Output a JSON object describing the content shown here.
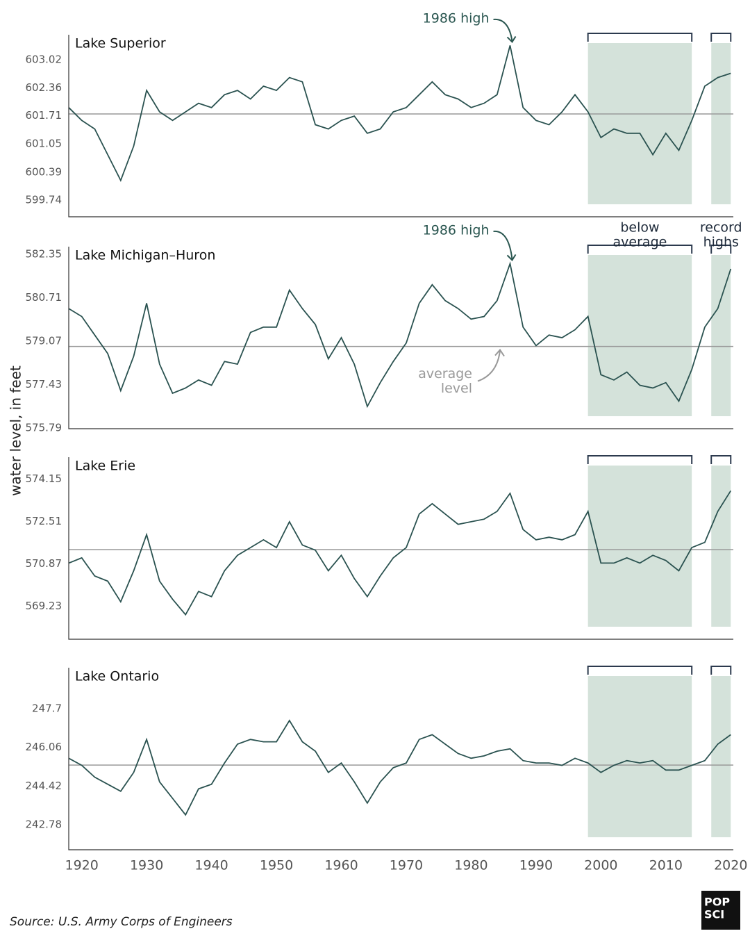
{
  "y_label": "water level, in feet",
  "source": "Source: U.S. Army Corps of Engineers",
  "logo": [
    "POP",
    "SCI"
  ],
  "chart_data": [
    {
      "type": "line",
      "title": "Lake Superior",
      "color": "#2a5250",
      "x": [
        1918,
        1920,
        1922,
        1924,
        1926,
        1928,
        1930,
        1932,
        1934,
        1936,
        1938,
        1940,
        1942,
        1944,
        1946,
        1948,
        1950,
        1952,
        1954,
        1956,
        1958,
        1960,
        1962,
        1964,
        1966,
        1968,
        1970,
        1972,
        1974,
        1976,
        1978,
        1980,
        1982,
        1984,
        1986,
        1988,
        1990,
        1992,
        1994,
        1996,
        1998,
        2000,
        2002,
        2004,
        2006,
        2008,
        2010,
        2012,
        2014,
        2016,
        2018,
        2020
      ],
      "values": [
        601.9,
        601.6,
        601.4,
        600.8,
        600.2,
        601.0,
        602.3,
        601.8,
        601.6,
        601.8,
        602.0,
        601.9,
        602.2,
        602.3,
        602.1,
        602.4,
        602.3,
        602.6,
        602.5,
        601.5,
        601.4,
        601.6,
        601.7,
        601.3,
        601.4,
        601.8,
        601.9,
        602.2,
        602.5,
        602.2,
        602.1,
        601.9,
        602.0,
        602.2,
        603.35,
        601.9,
        601.6,
        601.5,
        601.8,
        602.2,
        601.8,
        601.2,
        601.4,
        601.3,
        601.3,
        600.8,
        601.3,
        600.9,
        601.6,
        602.4,
        602.6,
        602.7
      ],
      "xlim": [
        1918,
        2020.4
      ],
      "ylim": [
        599.35,
        603.6
      ],
      "yticks": [
        599.74,
        600.39,
        601.05,
        601.71,
        602.36,
        603.02
      ],
      "average": 601.75,
      "shaded": [
        [
          1998,
          2014
        ],
        [
          2017,
          2020
        ]
      ],
      "annotation": {
        "text": "1986 high",
        "x": 1986
      }
    },
    {
      "type": "line",
      "title": "Lake Michigan–Huron",
      "color": "#2a5250",
      "x": [
        1918,
        1920,
        1922,
        1924,
        1926,
        1928,
        1930,
        1932,
        1934,
        1936,
        1938,
        1940,
        1942,
        1944,
        1946,
        1948,
        1950,
        1952,
        1954,
        1956,
        1958,
        1960,
        1962,
        1964,
        1966,
        1968,
        1970,
        1972,
        1974,
        1976,
        1978,
        1980,
        1982,
        1984,
        1986,
        1988,
        1990,
        1992,
        1994,
        1996,
        1998,
        2000,
        2002,
        2004,
        2006,
        2008,
        2010,
        2012,
        2014,
        2016,
        2018,
        2020
      ],
      "values": [
        580.3,
        580.0,
        579.3,
        578.6,
        577.2,
        578.5,
        580.5,
        578.2,
        577.1,
        577.3,
        577.6,
        577.4,
        578.3,
        578.2,
        579.4,
        579.6,
        579.6,
        581.0,
        580.3,
        579.7,
        578.4,
        579.2,
        578.2,
        576.6,
        577.5,
        578.3,
        579.0,
        580.5,
        581.2,
        580.6,
        580.3,
        579.9,
        580.0,
        580.6,
        582.0,
        579.6,
        578.9,
        579.3,
        579.2,
        579.5,
        580.0,
        577.8,
        577.6,
        577.9,
        577.4,
        577.3,
        577.5,
        576.8,
        578.0,
        579.6,
        580.3,
        581.8
      ],
      "xlim": [
        1918,
        2020.4
      ],
      "ylim": [
        575.76,
        582.64
      ],
      "yticks": [
        575.79,
        577.43,
        579.07,
        580.71,
        582.35
      ],
      "average": 578.87,
      "shaded": [
        [
          1998,
          2014
        ],
        [
          2017,
          2020
        ]
      ],
      "annotation": {
        "text": "1986 high",
        "x": 1986
      },
      "average_label": [
        "average",
        "level"
      ],
      "bracket_labels": [
        [
          "below",
          "average"
        ],
        [
          "record",
          "highs"
        ]
      ]
    },
    {
      "type": "line",
      "title": "Lake Erie",
      "color": "#2a5250",
      "x": [
        1918,
        1920,
        1922,
        1924,
        1926,
        1928,
        1930,
        1932,
        1934,
        1936,
        1938,
        1940,
        1942,
        1944,
        1946,
        1948,
        1950,
        1952,
        1954,
        1956,
        1958,
        1960,
        1962,
        1964,
        1966,
        1968,
        1970,
        1972,
        1974,
        1976,
        1978,
        1980,
        1982,
        1984,
        1986,
        1988,
        1990,
        1992,
        1994,
        1996,
        1998,
        2000,
        2002,
        2004,
        2006,
        2008,
        2010,
        2012,
        2014,
        2016,
        2018,
        2020
      ],
      "values": [
        570.9,
        571.1,
        570.4,
        570.2,
        569.4,
        570.6,
        572.0,
        570.2,
        569.5,
        568.9,
        569.8,
        569.6,
        570.6,
        571.2,
        571.5,
        571.8,
        571.5,
        572.5,
        571.6,
        571.4,
        570.6,
        571.2,
        570.3,
        569.6,
        570.4,
        571.1,
        571.5,
        572.8,
        573.2,
        572.8,
        572.4,
        572.5,
        572.6,
        572.9,
        573.6,
        572.2,
        571.8,
        571.9,
        571.8,
        572.0,
        572.9,
        570.9,
        570.9,
        571.1,
        570.9,
        571.2,
        571.0,
        570.6,
        571.5,
        571.7,
        572.9,
        573.7
      ],
      "xlim": [
        1918,
        2020.4
      ],
      "ylim": [
        567.95,
        575.0
      ],
      "yticks": [
        569.23,
        570.87,
        572.51,
        574.15
      ],
      "average": 571.42,
      "shaded": [
        [
          1998,
          2014
        ],
        [
          2017,
          2020
        ]
      ]
    },
    {
      "type": "line",
      "title": "Lake Ontario",
      "color": "#2a5250",
      "x": [
        1918,
        1920,
        1922,
        1924,
        1926,
        1928,
        1930,
        1932,
        1934,
        1936,
        1938,
        1940,
        1942,
        1944,
        1946,
        1948,
        1950,
        1952,
        1954,
        1956,
        1958,
        1960,
        1962,
        1964,
        1966,
        1968,
        1970,
        1972,
        1974,
        1976,
        1978,
        1980,
        1982,
        1984,
        1986,
        1988,
        1990,
        1992,
        1994,
        1996,
        1998,
        2000,
        2002,
        2004,
        2006,
        2008,
        2010,
        2012,
        2014,
        2016,
        2018,
        2020
      ],
      "values": [
        245.6,
        245.3,
        244.8,
        244.5,
        244.2,
        245.0,
        246.4,
        244.6,
        243.9,
        243.2,
        244.3,
        244.5,
        245.4,
        246.2,
        246.4,
        246.3,
        246.3,
        247.2,
        246.3,
        245.9,
        245.0,
        245.4,
        244.6,
        243.7,
        244.6,
        245.2,
        245.4,
        246.4,
        246.6,
        246.2,
        245.8,
        245.6,
        245.7,
        245.9,
        246.0,
        245.5,
        245.4,
        245.4,
        245.3,
        245.6,
        245.4,
        245.0,
        245.3,
        245.5,
        245.4,
        245.5,
        245.1,
        245.1,
        245.3,
        245.5,
        246.2,
        246.6
      ],
      "xlim": [
        1918,
        2020.4
      ],
      "ylim": [
        241.72,
        249.44
      ],
      "yticks": [
        242.78,
        244.42,
        246.06,
        247.7
      ],
      "average": 245.31,
      "shaded": [
        [
          1998,
          2014
        ],
        [
          2017,
          2020
        ]
      ],
      "xticks": [
        1920,
        1930,
        1940,
        1950,
        1960,
        1970,
        1980,
        1990,
        2000,
        2010,
        2020
      ]
    }
  ]
}
